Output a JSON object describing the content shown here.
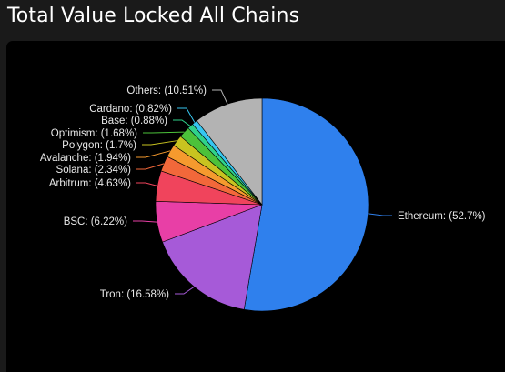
{
  "page": {
    "title": "Total Value Locked All Chains"
  },
  "chart_data": {
    "type": "pie",
    "title": "Total Value Locked All Chains",
    "slices": [
      {
        "label": "Ethereum: (52.7%)",
        "name": "Ethereum",
        "value": 52.7,
        "color": "#2f80ed"
      },
      {
        "label": "Tron: (16.58%)",
        "name": "Tron",
        "value": 16.58,
        "color": "#a65ad8"
      },
      {
        "label": "BSC: (6.22%)",
        "name": "BSC",
        "value": 6.22,
        "color": "#e83fa6"
      },
      {
        "label": "Arbitrum: (4.63%)",
        "name": "Arbitrum",
        "value": 4.63,
        "color": "#f0445c"
      },
      {
        "label": "Solana: (2.34%)",
        "name": "Solana",
        "value": 2.34,
        "color": "#f2683a"
      },
      {
        "label": "Avalanche: (1.94%)",
        "name": "Avalanche",
        "value": 1.94,
        "color": "#f59a2e"
      },
      {
        "label": "Polygon: (1.7%)",
        "name": "Polygon",
        "value": 1.7,
        "color": "#c8c320"
      },
      {
        "label": "Optimism: (1.68%)",
        "name": "Optimism",
        "value": 1.68,
        "color": "#4cc23a"
      },
      {
        "label": "Base: (0.88%)",
        "name": "Base",
        "value": 0.88,
        "color": "#2fd28a"
      },
      {
        "label": "Cardano: (0.82%)",
        "name": "Cardano",
        "value": 0.82,
        "color": "#36c6f0"
      },
      {
        "label": "Others: (10.51%)",
        "name": "Others",
        "value": 10.51,
        "color": "#b3b3b3"
      }
    ]
  }
}
